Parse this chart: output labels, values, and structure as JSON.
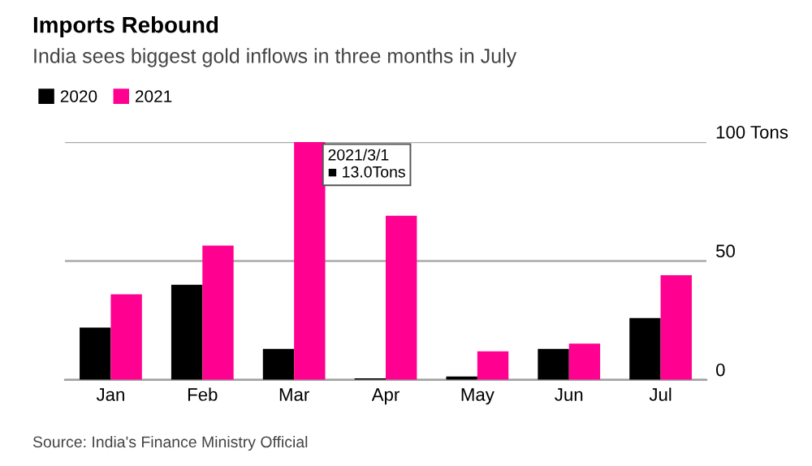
{
  "chart_data": {
    "type": "bar",
    "title": "Imports Rebound",
    "subtitle": "India sees biggest gold inflows in three months in July",
    "categories": [
      "Jan",
      "Feb",
      "Mar",
      "Apr",
      "May",
      "Jun",
      "Jul"
    ],
    "series": [
      {
        "name": "2020",
        "color": "#000000",
        "values": [
          22,
          40,
          13,
          0.6,
          1.4,
          13,
          26
        ]
      },
      {
        "name": "2021",
        "color": "#ff0090",
        "values": [
          36,
          56.5,
          100,
          69,
          12,
          15.2,
          44
        ]
      }
    ],
    "ylim": [
      0,
      100
    ],
    "yticks": [
      0,
      50,
      {
        "value": 100,
        "label": "100 Tons"
      }
    ],
    "grid": "y",
    "legend": "top left",
    "annotations": [
      {
        "text": "2021/3/1\n■ 13.0Tons",
        "x": "Mar",
        "y": 100
      },
      "Source: India's Finance Ministry Official"
    ]
  }
}
